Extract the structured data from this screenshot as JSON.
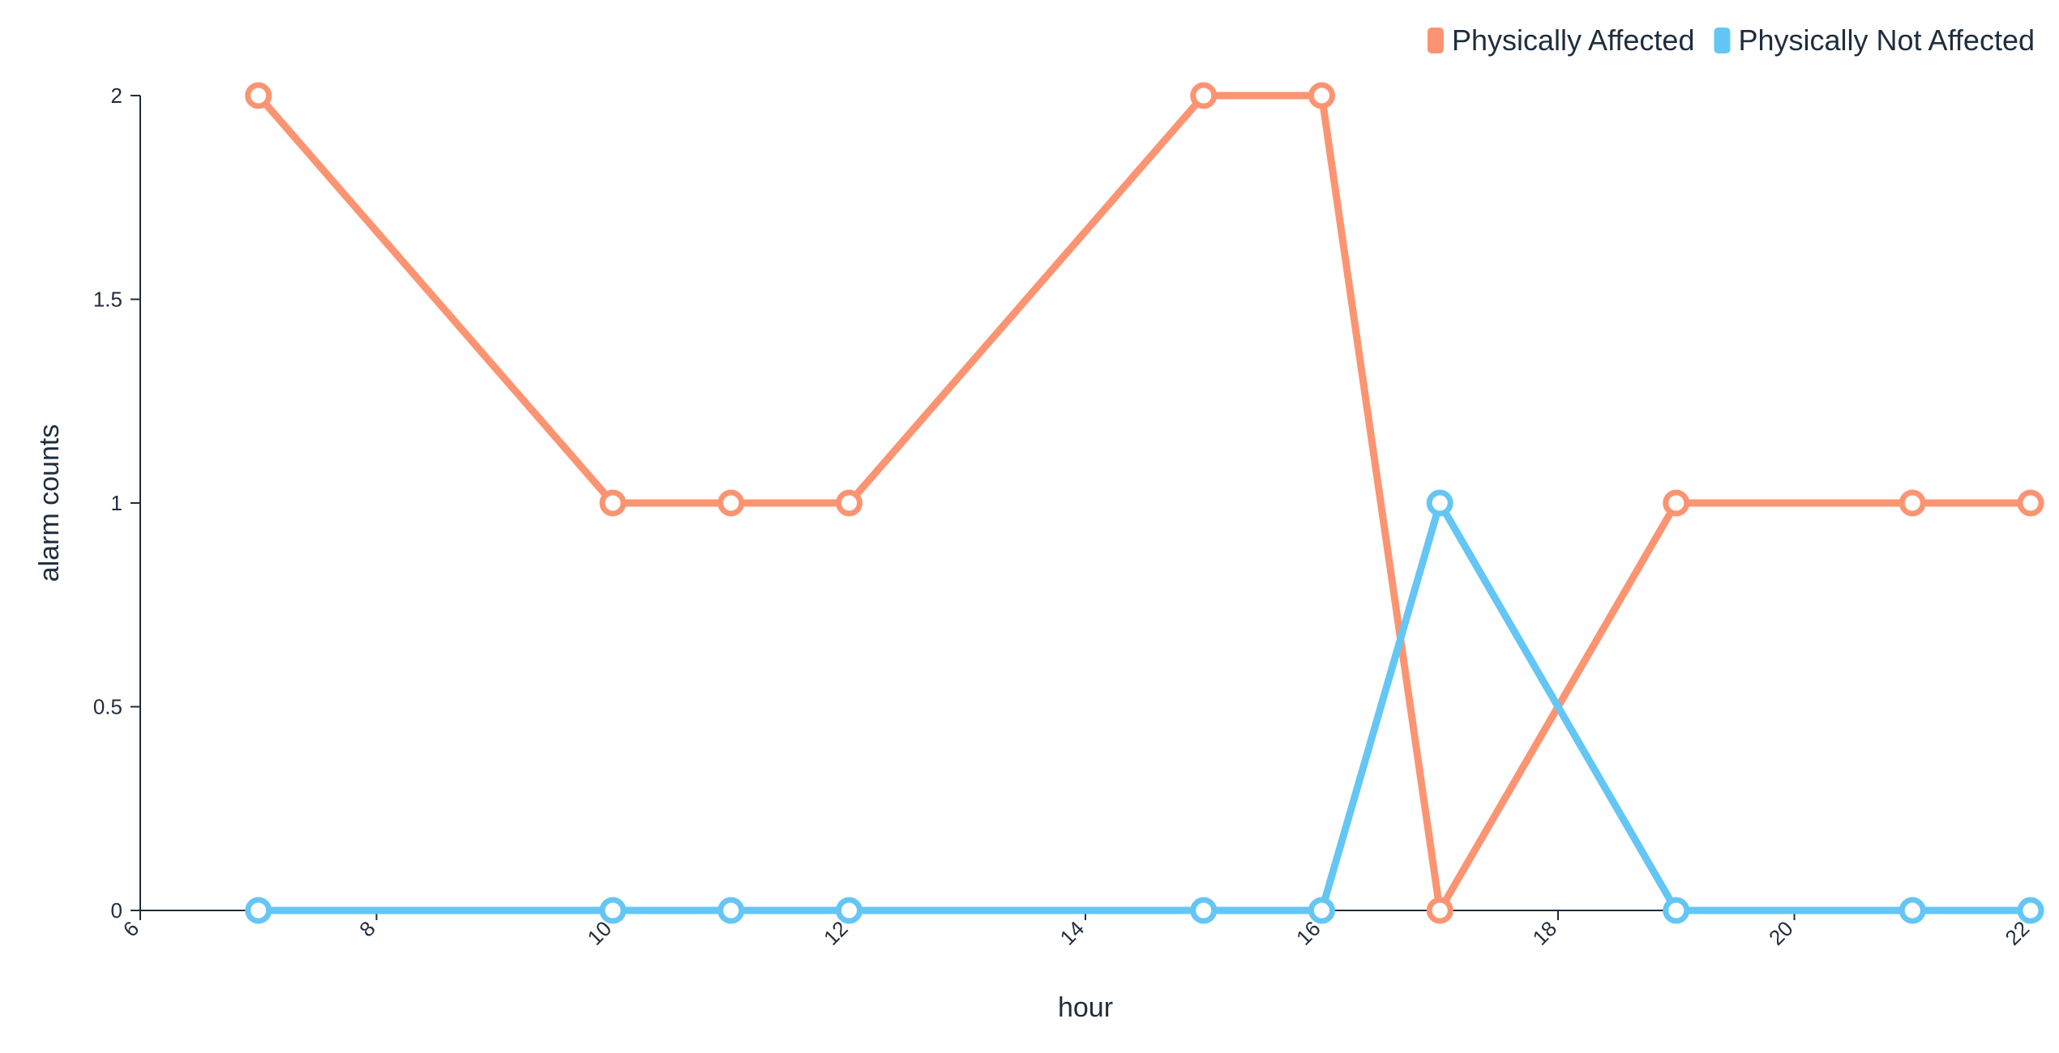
{
  "chart_data": {
    "type": "line",
    "x": [
      7,
      10,
      11,
      12,
      15,
      16,
      17,
      19,
      21,
      22
    ],
    "xlabel": "hour",
    "ylabel": "alarm counts",
    "xlim": [
      6,
      22
    ],
    "ylim": [
      0,
      2
    ],
    "xticks": [
      "6",
      "8",
      "10",
      "12",
      "14",
      "16",
      "18",
      "20",
      "22"
    ],
    "yticks": [
      "0",
      "0.5",
      "1",
      "1.5",
      "2"
    ],
    "grid": false,
    "legend_position": "top-right",
    "series": [
      {
        "name": "Physically Affected",
        "color": "#fc9472",
        "values": [
          2,
          1,
          1,
          1,
          2,
          2,
          0,
          1,
          1,
          1
        ]
      },
      {
        "name": "Physically Not Affected",
        "color": "#64c6f5",
        "values": [
          0,
          0,
          0,
          0,
          0,
          0,
          1,
          0,
          0,
          0
        ]
      }
    ]
  }
}
